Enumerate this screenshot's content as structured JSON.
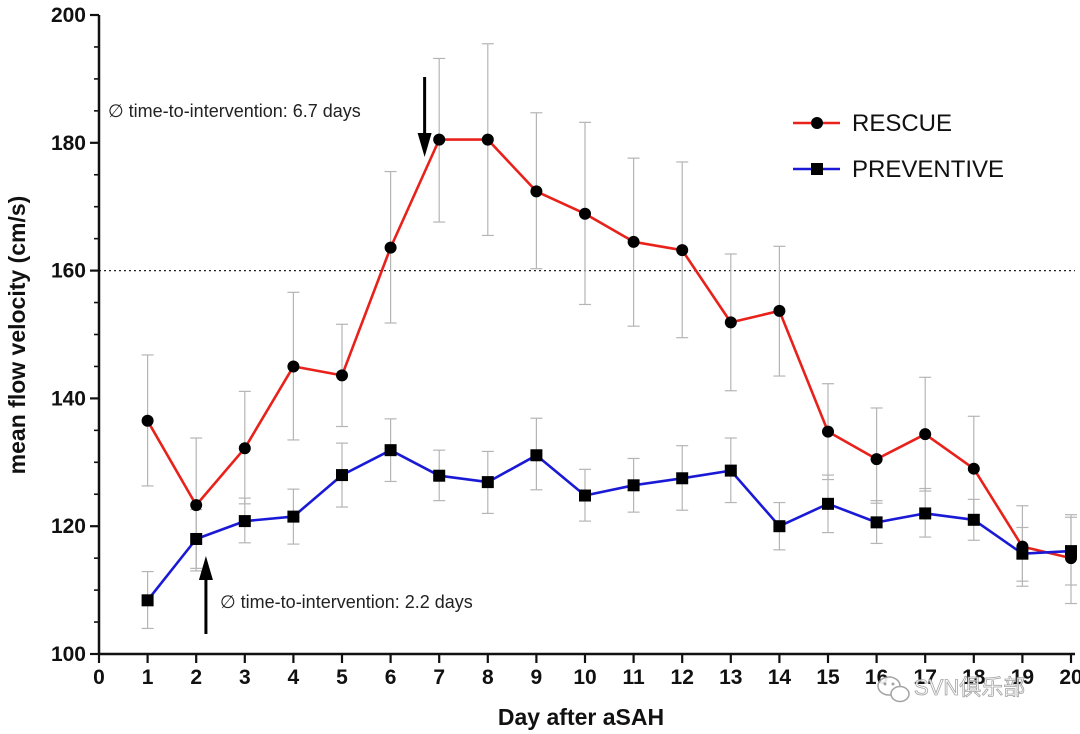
{
  "chart_data": {
    "type": "line",
    "xlabel": "Day after aSAH",
    "ylabel": "mean flow velocity (cm/s)",
    "xlim": [
      0,
      20
    ],
    "ylim": [
      100,
      200
    ],
    "x_ticks": [
      0,
      1,
      2,
      3,
      4,
      5,
      6,
      7,
      8,
      9,
      10,
      11,
      12,
      13,
      14,
      15,
      16,
      17,
      18,
      19,
      20
    ],
    "y_ticks": [
      100,
      120,
      140,
      160,
      180,
      200
    ],
    "reference_line": {
      "y": 160,
      "style": "dotted"
    },
    "legend_position": "top-right",
    "series": [
      {
        "name": "RESCUE",
        "color": "#e8221b",
        "marker": "circle",
        "x": [
          1,
          2,
          3,
          4,
          5,
          6,
          7,
          8,
          9,
          10,
          11,
          12,
          13,
          14,
          15,
          16,
          17,
          18,
          19,
          20
        ],
        "y": [
          136.5,
          123.3,
          132.2,
          145.0,
          143.6,
          163.6,
          180.5,
          180.5,
          172.4,
          168.9,
          164.5,
          163.2,
          151.9,
          153.7,
          134.8,
          130.5,
          134.4,
          129.0,
          116.8,
          115.0
        ],
        "err_low": [
          126.3,
          113.0,
          123.5,
          133.5,
          135.6,
          151.8,
          167.6,
          165.5,
          160.3,
          154.7,
          151.3,
          149.5,
          141.2,
          143.5,
          127.3,
          123.6,
          125.5,
          120.8,
          110.6,
          107.9
        ],
        "err_high": [
          146.8,
          133.8,
          141.1,
          156.6,
          151.6,
          175.5,
          193.2,
          195.5,
          184.7,
          183.2,
          177.6,
          177.0,
          162.6,
          163.8,
          142.3,
          138.5,
          143.3,
          137.2,
          123.2,
          121.8
        ]
      },
      {
        "name": "PREVENTIVE",
        "color": "#1a1ad6",
        "marker": "square",
        "x": [
          1,
          2,
          3,
          4,
          5,
          6,
          7,
          8,
          9,
          10,
          11,
          12,
          13,
          14,
          15,
          16,
          17,
          18,
          19,
          20
        ],
        "y": [
          108.4,
          118.0,
          120.8,
          121.5,
          128.0,
          131.9,
          127.9,
          126.9,
          131.1,
          124.8,
          126.4,
          127.5,
          128.7,
          120.0,
          123.5,
          120.6,
          122.0,
          121.0,
          115.7,
          116.1
        ],
        "err_low": [
          104.0,
          113.4,
          117.4,
          117.2,
          123.0,
          127.0,
          124.0,
          122.0,
          125.7,
          120.8,
          122.2,
          122.5,
          123.7,
          116.3,
          119.0,
          117.3,
          118.3,
          117.8,
          111.4,
          110.8
        ],
        "err_high": [
          112.9,
          122.6,
          124.4,
          125.8,
          133.0,
          136.8,
          131.9,
          131.7,
          136.9,
          128.9,
          130.6,
          132.6,
          133.8,
          123.7,
          128.0,
          124.0,
          125.9,
          124.2,
          119.8,
          121.4
        ]
      }
    ],
    "annotations": [
      {
        "id": "rescue",
        "text": "∅ time-to-intervention: 6.7 days",
        "x": 6.7,
        "arrow": "down"
      },
      {
        "id": "preventive",
        "text": "∅ time-to-intervention: 2.2 days",
        "x": 2.2,
        "arrow": "up"
      }
    ]
  },
  "watermark": {
    "text": "SVN俱乐部",
    "icon": "wechat-icon"
  }
}
